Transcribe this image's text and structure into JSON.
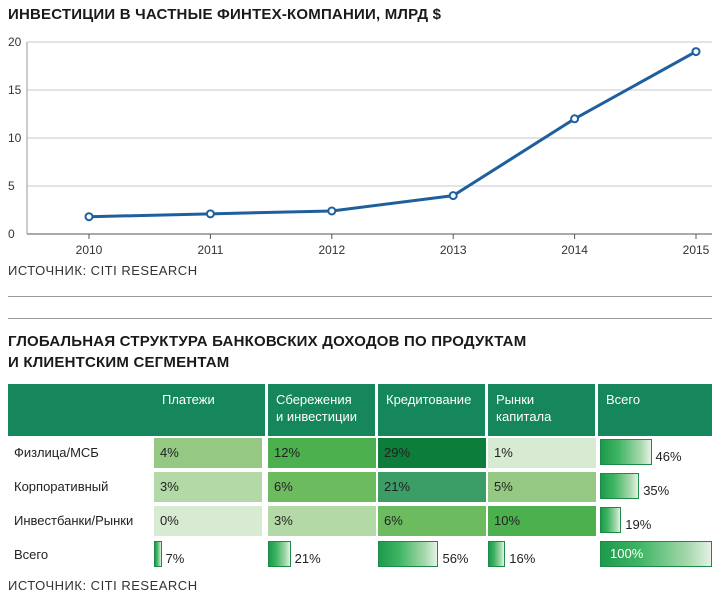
{
  "chart_data": [
    {
      "type": "line",
      "title": "ИНВЕСТИЦИИ В ЧАСТНЫЕ ФИНТЕХ-КОМПАНИИ, МЛРД $",
      "x": [
        "2010",
        "2011",
        "2012",
        "2013",
        "2014",
        "2015"
      ],
      "values": [
        1.8,
        2.1,
        2.4,
        4.0,
        12.0,
        19.0
      ],
      "yticks": [
        "0",
        "5",
        "10",
        "15",
        "20"
      ],
      "ylim": [
        0,
        20
      ],
      "grid": "horizontal",
      "line_color": "#1f5f9e",
      "source": "ИСТОЧНИК: CITI RESEARCH"
    },
    {
      "type": "table",
      "title_line1": "ГЛОБАЛЬНАЯ СТРУКТУРА БАНКОВСКИХ ДОХОДОВ ПО ПРОДУКТАМ",
      "title_line2": "И КЛИЕНТСКИМ СЕГМЕНТАМ",
      "columns": [
        {
          "line1": "Платежи",
          "line2": ""
        },
        {
          "line1": "Сбережения",
          "line2": "и инвестиции"
        },
        {
          "line1": "Кредитование",
          "line2": ""
        },
        {
          "line1": "Рынки",
          "line2": "капитала"
        },
        {
          "line1": "Всего",
          "line2": ""
        }
      ],
      "rows": [
        {
          "label": "Физлица/МСБ",
          "values": [
            4,
            12,
            29,
            1
          ],
          "cells": [
            "4%",
            "12%",
            "29%",
            "1%"
          ],
          "total": 46,
          "total_label": "46%"
        },
        {
          "label": "Корпоративный",
          "values": [
            3,
            6,
            21,
            5
          ],
          "cells": [
            "3%",
            "6%",
            "21%",
            "5%"
          ],
          "total": 35,
          "total_label": "35%"
        },
        {
          "label": "Инвестбанки/Рынки",
          "values": [
            0,
            3,
            6,
            10
          ],
          "cells": [
            "0%",
            "3%",
            "6%",
            "10%"
          ],
          "total": 19,
          "total_label": "19%"
        }
      ],
      "totals_row": {
        "label": "Всего",
        "values": [
          7,
          21,
          56,
          16,
          100
        ],
        "labels": [
          "7%",
          "21%",
          "56%",
          "16%",
          "100%"
        ]
      },
      "header_color": "#15875a",
      "source": "ИСТОЧНИК: CITI RESEARCH"
    }
  ]
}
